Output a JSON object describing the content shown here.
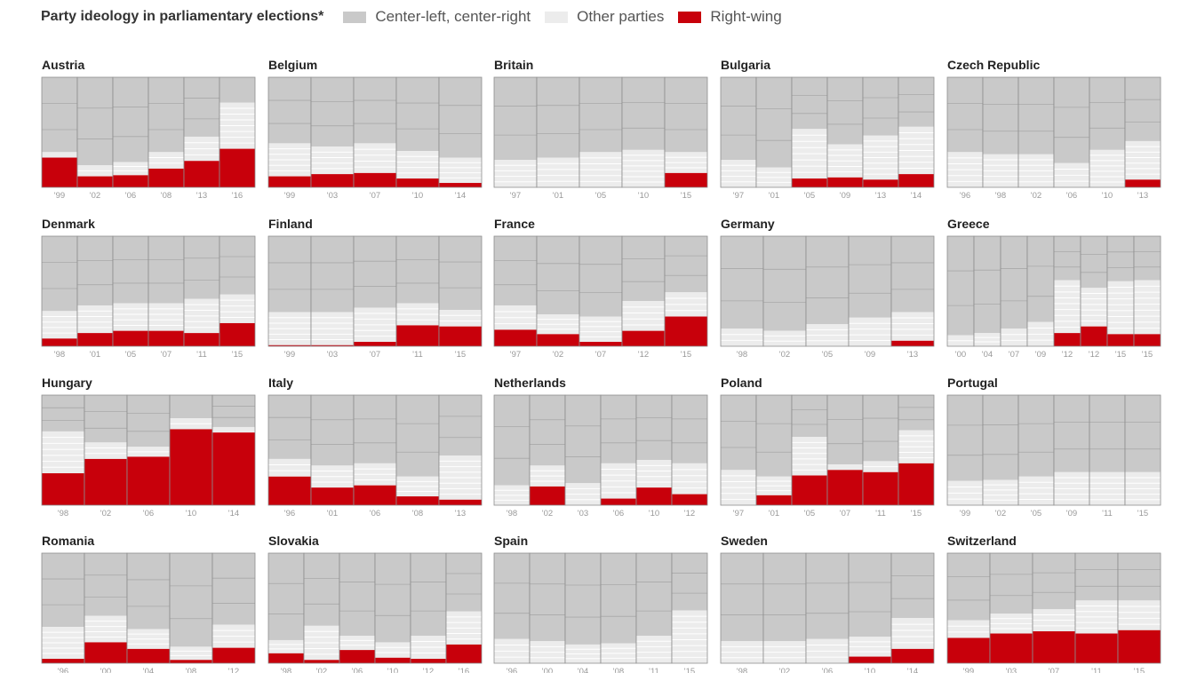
{
  "colors": {
    "center": "#c9c9c9",
    "other": "#ececec",
    "right": "#c8000b",
    "border": "#8e8e8e",
    "divider": "#ffffff"
  },
  "legend": {
    "title": "Party ideology in parliamentary elections*",
    "items": [
      {
        "label": "Center-left, center-right",
        "color": "#c9c9c9"
      },
      {
        "label": "Other parties",
        "color": "#ececec"
      },
      {
        "label": "Right-wing",
        "color": "#c8000b"
      }
    ]
  },
  "chart_data": {
    "type": "bar",
    "stacked": true,
    "ylim": [
      0,
      100
    ],
    "panels": [
      {
        "country": "Austria",
        "years": [
          "'99",
          "'02",
          "'06",
          "'08",
          "'13",
          "'16"
        ],
        "right": [
          27,
          10,
          11,
          17,
          24,
          35
        ],
        "other": [
          5,
          10,
          12,
          15,
          22,
          42
        ]
      },
      {
        "country": "Belgium",
        "years": [
          "'99",
          "'03",
          "'07",
          "'10",
          "'14"
        ],
        "right": [
          10,
          12,
          13,
          8,
          4
        ],
        "other": [
          30,
          25,
          27,
          25,
          23
        ]
      },
      {
        "country": "Britain",
        "years": [
          "'97",
          "'01",
          "'05",
          "'10",
          "'15"
        ],
        "right": [
          0,
          0,
          0,
          0,
          13
        ],
        "other": [
          25,
          27,
          32,
          34,
          19
        ]
      },
      {
        "country": "Bulgaria",
        "years": [
          "'97",
          "'01",
          "'05",
          "'09",
          "'13",
          "'14"
        ],
        "right": [
          0,
          0,
          8,
          9,
          7,
          12
        ],
        "other": [
          25,
          18,
          45,
          30,
          40,
          43
        ]
      },
      {
        "country": "Czech Republic",
        "years": [
          "'96",
          "'98",
          "'02",
          "'06",
          "'10",
          "'13"
        ],
        "right": [
          0,
          0,
          0,
          0,
          0,
          7
        ],
        "other": [
          32,
          30,
          30,
          22,
          34,
          35
        ]
      },
      {
        "country": "Denmark",
        "years": [
          "'98",
          "'01",
          "'05",
          "'07",
          "'11",
          "'15"
        ],
        "right": [
          7,
          12,
          14,
          14,
          12,
          21
        ],
        "other": [
          25,
          25,
          25,
          25,
          31,
          26
        ]
      },
      {
        "country": "Finland",
        "years": [
          "'99",
          "'03",
          "'07",
          "'11",
          "'15"
        ],
        "right": [
          1,
          1,
          4,
          19,
          18
        ],
        "other": [
          30,
          30,
          31,
          20,
          15
        ]
      },
      {
        "country": "France",
        "years": [
          "'97",
          "'02",
          "'07",
          "'12",
          "'15"
        ],
        "right": [
          15,
          11,
          4,
          14,
          27
        ],
        "other": [
          22,
          18,
          23,
          27,
          22
        ]
      },
      {
        "country": "Germany",
        "years": [
          "'98",
          "'02",
          "'05",
          "'09",
          "'13"
        ],
        "right": [
          0,
          0,
          0,
          0,
          5
        ],
        "other": [
          16,
          14,
          20,
          26,
          26
        ]
      },
      {
        "country": "Greece",
        "years": [
          "'00",
          "'04",
          "'07",
          "'09",
          "'12",
          "'12",
          "'15",
          "'15"
        ],
        "right": [
          0,
          0,
          0,
          0,
          12,
          18,
          11,
          11
        ],
        "other": [
          10,
          12,
          16,
          22,
          48,
          35,
          48,
          49
        ]
      },
      {
        "country": "Hungary",
        "years": [
          "'98",
          "'02",
          "'06",
          "'10",
          "'14"
        ],
        "right": [
          29,
          42,
          44,
          69,
          66
        ],
        "other": [
          38,
          15,
          9,
          10,
          5
        ]
      },
      {
        "country": "Italy",
        "years": [
          "'96",
          "'01",
          "'06",
          "'08",
          "'13"
        ],
        "right": [
          26,
          16,
          18,
          8,
          5
        ],
        "other": [
          16,
          20,
          20,
          18,
          40
        ]
      },
      {
        "country": "Netherlands",
        "years": [
          "'98",
          "'02",
          "'03",
          "'06",
          "'10",
          "'12"
        ],
        "right": [
          0,
          17,
          0,
          6,
          16,
          10
        ],
        "other": [
          18,
          19,
          20,
          32,
          25,
          28
        ]
      },
      {
        "country": "Poland",
        "years": [
          "'97",
          "'01",
          "'05",
          "'07",
          "'11",
          "'15"
        ],
        "right": [
          0,
          9,
          27,
          32,
          30,
          38
        ],
        "other": [
          32,
          17,
          35,
          5,
          10,
          30
        ]
      },
      {
        "country": "Portugal",
        "years": [
          "'99",
          "'02",
          "'05",
          "'09",
          "'11",
          "'15"
        ],
        "right": [
          0,
          0,
          0,
          0,
          0,
          0
        ],
        "other": [
          22,
          23,
          26,
          30,
          30,
          30
        ]
      },
      {
        "country": "Romania",
        "years": [
          "'96",
          "'00",
          "'04",
          "'08",
          "'12"
        ],
        "right": [
          4,
          19,
          13,
          3,
          14
        ],
        "other": [
          29,
          24,
          18,
          12,
          21
        ]
      },
      {
        "country": "Slovakia",
        "years": [
          "'98",
          "'02",
          "'06",
          "'10",
          "'12",
          "'16"
        ],
        "right": [
          9,
          3,
          12,
          5,
          4,
          17
        ],
        "other": [
          12,
          31,
          13,
          14,
          21,
          30
        ]
      },
      {
        "country": "Spain",
        "years": [
          "'96",
          "'00",
          "'04",
          "'08",
          "'11",
          "'15"
        ],
        "right": [
          0,
          0,
          0,
          0,
          0,
          0
        ],
        "other": [
          22,
          20,
          17,
          18,
          25,
          48
        ]
      },
      {
        "country": "Sweden",
        "years": [
          "'98",
          "'02",
          "'06",
          "'10",
          "'14"
        ],
        "right": [
          0,
          0,
          0,
          6,
          13
        ],
        "other": [
          20,
          20,
          22,
          18,
          28
        ]
      },
      {
        "country": "Switzerland",
        "years": [
          "'99",
          "'03",
          "'07",
          "'11",
          "'15"
        ],
        "right": [
          23,
          27,
          29,
          27,
          30
        ],
        "other": [
          16,
          18,
          20,
          30,
          27
        ]
      }
    ]
  }
}
